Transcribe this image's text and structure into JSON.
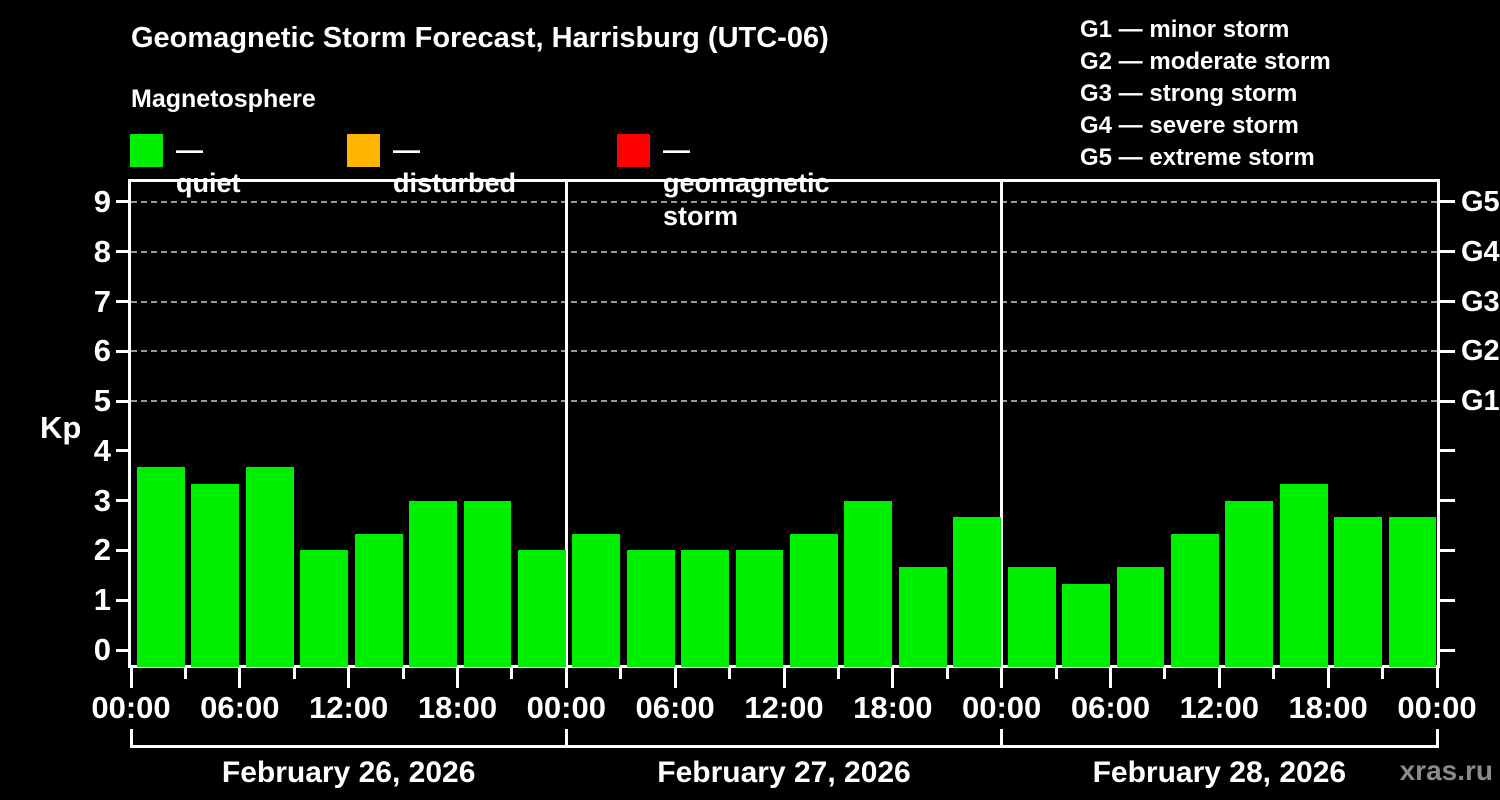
{
  "title": "Geomagnetic Storm Forecast, Harrisburg (UTC-06)",
  "subtitle": "Magnetosphere",
  "watermark": "xras.ru",
  "colors": {
    "background": "#000000",
    "text": "#ffffff",
    "quiet": "#00ee00",
    "disturbed": "#ffb400",
    "storm": "#ff0000",
    "grid": "#999999",
    "watermark_text": "#8a8a8a"
  },
  "legend": {
    "items": [
      {
        "key": "quiet",
        "label": "— quiet"
      },
      {
        "key": "disturbed",
        "label": "— disturbed"
      },
      {
        "key": "storm",
        "label": "— geomagnetic storm"
      }
    ]
  },
  "storm_scale_legend": [
    "G1 — minor storm",
    "G2 — moderate storm",
    "G3 — strong storm",
    "G4 — severe storm",
    "G5 — extreme storm"
  ],
  "chart_data": {
    "type": "bar",
    "title": "Geomagnetic Storm Forecast, Harrisburg (UTC-06)",
    "ylabel": "Kp",
    "ylim": [
      0,
      9
    ],
    "y_ticks": [
      0,
      1,
      2,
      3,
      4,
      5,
      6,
      7,
      8,
      9
    ],
    "grid_dashed_levels": [
      5,
      6,
      7,
      8,
      9
    ],
    "right_axis_labels": [
      {
        "kp": 5,
        "label": "G1"
      },
      {
        "kp": 6,
        "label": "G2"
      },
      {
        "kp": 7,
        "label": "G3"
      },
      {
        "kp": 8,
        "label": "G4"
      },
      {
        "kp": 9,
        "label": "G5"
      }
    ],
    "x_tick_labels": [
      "00:00",
      "06:00",
      "12:00",
      "18:00",
      "00:00",
      "06:00",
      "12:00",
      "18:00",
      "00:00",
      "06:00",
      "12:00",
      "18:00",
      "00:00"
    ],
    "x_minor_step_hours": 3,
    "bar_thresholds": {
      "disturbed_at_kp": 4,
      "storm_at_kp": 5
    },
    "days": [
      {
        "date": "February 26, 2026",
        "kp": [
          3.67,
          3.33,
          3.67,
          2.0,
          2.33,
          3.0,
          3.0,
          2.0
        ]
      },
      {
        "date": "February 27, 2026",
        "kp": [
          2.33,
          2.0,
          2.0,
          2.0,
          2.33,
          3.0,
          1.67,
          2.67
        ]
      },
      {
        "date": "February 28, 2026",
        "kp": [
          1.67,
          1.33,
          1.67,
          2.33,
          3.0,
          3.33,
          2.67,
          2.67
        ]
      }
    ]
  }
}
